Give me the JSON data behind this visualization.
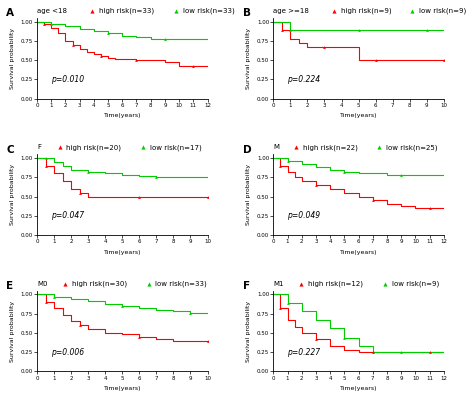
{
  "panels": [
    {
      "label": "A",
      "title": "age <18",
      "legend": [
        "high risk(n=33)",
        "low risk(n=33)"
      ],
      "pvalue": "p=0.010",
      "xmax": 12,
      "xticks": [
        0,
        1,
        2,
        3,
        4,
        5,
        6,
        7,
        8,
        9,
        10,
        11,
        12
      ],
      "high_risk": {
        "x": [
          0,
          0.5,
          1,
          1.5,
          2,
          2.5,
          3,
          3.5,
          4,
          4.5,
          5,
          5.5,
          6,
          7,
          8,
          9,
          10,
          11,
          12
        ],
        "y": [
          1.0,
          0.97,
          0.92,
          0.85,
          0.75,
          0.7,
          0.65,
          0.6,
          0.58,
          0.55,
          0.53,
          0.52,
          0.52,
          0.5,
          0.5,
          0.48,
          0.42,
          0.42,
          0.42
        ]
      },
      "low_risk": {
        "x": [
          0,
          1,
          2,
          3,
          4,
          5,
          6,
          7,
          8,
          9,
          10,
          11,
          12
        ],
        "y": [
          1.0,
          0.97,
          0.95,
          0.9,
          0.88,
          0.85,
          0.82,
          0.8,
          0.78,
          0.77,
          0.77,
          0.77,
          0.77
        ]
      }
    },
    {
      "label": "B",
      "title": "age >=18",
      "legend": [
        "high risk(n=9)",
        "low risk(n=9)"
      ],
      "pvalue": "p=0.224",
      "xmax": 10,
      "xticks": [
        0,
        1,
        2,
        3,
        4,
        5,
        6,
        7,
        8,
        9,
        10
      ],
      "high_risk": {
        "x": [
          0,
          0.5,
          1,
          1.5,
          2,
          3,
          4,
          5,
          5.5,
          6,
          7,
          8,
          9,
          10
        ],
        "y": [
          1.0,
          0.89,
          0.78,
          0.72,
          0.67,
          0.67,
          0.67,
          0.5,
          0.5,
          0.5,
          0.5,
          0.5,
          0.5,
          0.5
        ]
      },
      "low_risk": {
        "x": [
          0,
          1,
          2,
          3,
          4,
          5,
          6,
          7,
          8,
          9,
          10
        ],
        "y": [
          1.0,
          0.89,
          0.89,
          0.89,
          0.89,
          0.89,
          0.89,
          0.89,
          0.89,
          0.89,
          0.89
        ]
      }
    },
    {
      "label": "C",
      "title": "F",
      "legend": [
        "high risk(n=20)",
        "low risk(n=17)"
      ],
      "pvalue": "p=0.047",
      "xmax": 10,
      "xticks": [
        0,
        1,
        2,
        3,
        4,
        5,
        6,
        7,
        8,
        9,
        10
      ],
      "high_risk": {
        "x": [
          0,
          0.5,
          1,
          1.5,
          2,
          2.5,
          3,
          4,
          5,
          6,
          7,
          8,
          9,
          10
        ],
        "y": [
          1.0,
          0.9,
          0.8,
          0.7,
          0.6,
          0.55,
          0.5,
          0.5,
          0.5,
          0.5,
          0.5,
          0.5,
          0.5,
          0.5
        ]
      },
      "low_risk": {
        "x": [
          0,
          0.5,
          1,
          1.5,
          2,
          3,
          4,
          5,
          6,
          7,
          8,
          9,
          10
        ],
        "y": [
          1.0,
          1.0,
          0.95,
          0.9,
          0.85,
          0.82,
          0.8,
          0.78,
          0.77,
          0.75,
          0.75,
          0.75,
          0.75
        ]
      }
    },
    {
      "label": "D",
      "title": "M",
      "legend": [
        "high risk(n=22)",
        "low risk(n=25)"
      ],
      "pvalue": "p=0.049",
      "xmax": 12,
      "xticks": [
        0,
        1,
        2,
        3,
        4,
        5,
        6,
        7,
        8,
        9,
        10,
        11,
        12
      ],
      "high_risk": {
        "x": [
          0,
          0.5,
          1,
          1.5,
          2,
          3,
          4,
          5,
          6,
          7,
          8,
          9,
          10,
          11,
          12
        ],
        "y": [
          1.0,
          0.9,
          0.82,
          0.75,
          0.7,
          0.65,
          0.6,
          0.55,
          0.5,
          0.45,
          0.4,
          0.38,
          0.35,
          0.35,
          0.35
        ]
      },
      "low_risk": {
        "x": [
          0,
          1,
          2,
          3,
          4,
          5,
          6,
          7,
          8,
          9,
          10,
          11,
          12
        ],
        "y": [
          1.0,
          0.96,
          0.92,
          0.88,
          0.85,
          0.82,
          0.8,
          0.8,
          0.78,
          0.78,
          0.78,
          0.78,
          0.78
        ]
      }
    },
    {
      "label": "E",
      "title": "M0",
      "legend": [
        "high risk(n=30)",
        "low risk(n=33)"
      ],
      "pvalue": "p=0.006",
      "xmax": 10,
      "xticks": [
        0,
        1,
        2,
        3,
        4,
        5,
        6,
        7,
        8,
        9,
        10
      ],
      "high_risk": {
        "x": [
          0,
          0.5,
          1,
          1.5,
          2,
          2.5,
          3,
          4,
          5,
          6,
          7,
          8,
          9,
          10
        ],
        "y": [
          1.0,
          0.9,
          0.82,
          0.73,
          0.65,
          0.6,
          0.55,
          0.5,
          0.48,
          0.45,
          0.42,
          0.4,
          0.4,
          0.4
        ]
      },
      "low_risk": {
        "x": [
          0,
          1,
          2,
          3,
          4,
          5,
          6,
          7,
          8,
          9,
          10
        ],
        "y": [
          1.0,
          0.97,
          0.94,
          0.91,
          0.88,
          0.85,
          0.82,
          0.8,
          0.78,
          0.76,
          0.76
        ]
      }
    },
    {
      "label": "F",
      "title": "M1",
      "legend": [
        "high risk(n=12)",
        "low risk(n=9)"
      ],
      "pvalue": "p=0.227",
      "xmax": 12,
      "xticks": [
        0,
        1,
        2,
        3,
        4,
        5,
        6,
        7,
        8,
        9,
        10,
        11,
        12
      ],
      "high_risk": {
        "x": [
          0,
          0.5,
          1,
          1.5,
          2,
          3,
          4,
          5,
          6,
          7,
          8,
          9,
          10,
          11,
          12
        ],
        "y": [
          1.0,
          0.83,
          0.67,
          0.58,
          0.5,
          0.42,
          0.33,
          0.28,
          0.25,
          0.25,
          0.25,
          0.25,
          0.25,
          0.25,
          0.25
        ]
      },
      "low_risk": {
        "x": [
          0,
          1,
          2,
          3,
          4,
          5,
          6,
          7,
          8,
          9,
          10,
          11,
          12
        ],
        "y": [
          1.0,
          0.89,
          0.78,
          0.67,
          0.56,
          0.44,
          0.33,
          0.25,
          0.25,
          0.25,
          0.25,
          0.25,
          0.25
        ]
      }
    }
  ],
  "high_color": "#FF0000",
  "low_color": "#00CC00",
  "bg_color": "#FFFFFF",
  "font_size": 5.0,
  "label_font_size": 7.5,
  "pvalue_font_size": 5.5,
  "tick_fontsize": 4.0,
  "axis_label_fontsize": 4.5
}
